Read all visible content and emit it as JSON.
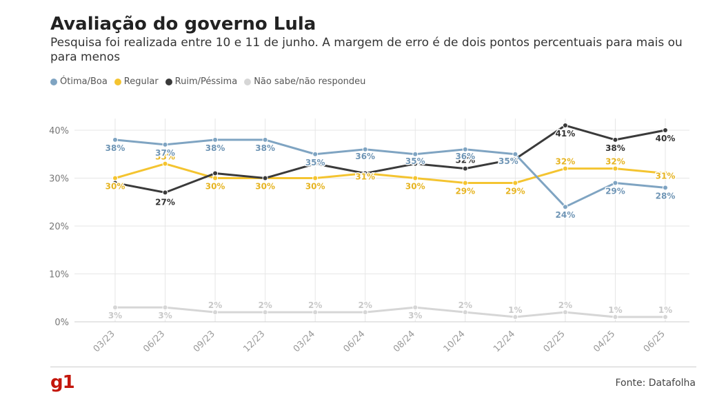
{
  "header": {
    "title": "Avaliação do governo Lula",
    "subtitle": "Pesquisa foi realizada entre 10 e 11 de junho. A margem de erro é de dois pontos percentuais para mais ou para menos"
  },
  "footer": {
    "logo": "g1",
    "source": "Fonte: Datafolha"
  },
  "chart_data": {
    "type": "line",
    "x": [
      "03/23",
      "06/23",
      "09/23",
      "12/23",
      "03/24",
      "06/24",
      "08/24",
      "10/24",
      "12/24",
      "02/25",
      "04/25",
      "06/25"
    ],
    "yticks": [
      "0%",
      "10%",
      "20%",
      "30%",
      "40%"
    ],
    "ylim": [
      0,
      40
    ],
    "grid": true,
    "legend_placement": "top-left",
    "series": [
      {
        "name": "Ótima/Boa",
        "color": "#7fa4c2",
        "values": [
          38,
          37,
          38,
          38,
          35,
          36,
          35,
          36,
          35,
          24,
          29,
          28
        ],
        "labels": [
          "38%",
          "37%",
          "38%",
          "38%",
          "35%",
          "36%",
          "35%",
          "36%",
          "35%",
          "24%",
          "29%",
          "28%"
        ]
      },
      {
        "name": "Regular",
        "color": "#f4c430",
        "values": [
          30,
          33,
          30,
          30,
          30,
          31,
          30,
          29,
          29,
          32,
          32,
          31
        ],
        "labels": [
          "30%",
          "33%",
          "30%",
          "30%",
          "30%",
          "31%",
          "30%",
          "29%",
          "29%",
          "32%",
          "32%",
          "31%"
        ]
      },
      {
        "name": "Ruim/Péssima",
        "color": "#3a3a3a",
        "values": [
          29,
          27,
          31,
          30,
          33,
          31,
          33,
          32,
          34,
          41,
          38,
          40
        ],
        "labels": [
          "",
          "27%",
          "",
          "",
          "",
          "",
          "",
          "32%",
          "",
          "41%",
          "38%",
          "40%"
        ]
      },
      {
        "name": "Não sabe/não respondeu",
        "color": "#d6d6d6",
        "values": [
          3,
          3,
          2,
          2,
          2,
          2,
          3,
          2,
          1,
          2,
          1,
          1
        ],
        "labels": [
          "3%",
          "3%",
          "2%",
          "2%",
          "2%",
          "2%",
          "3%",
          "2%",
          "1%",
          "2%",
          "1%",
          "1%"
        ]
      }
    ]
  }
}
